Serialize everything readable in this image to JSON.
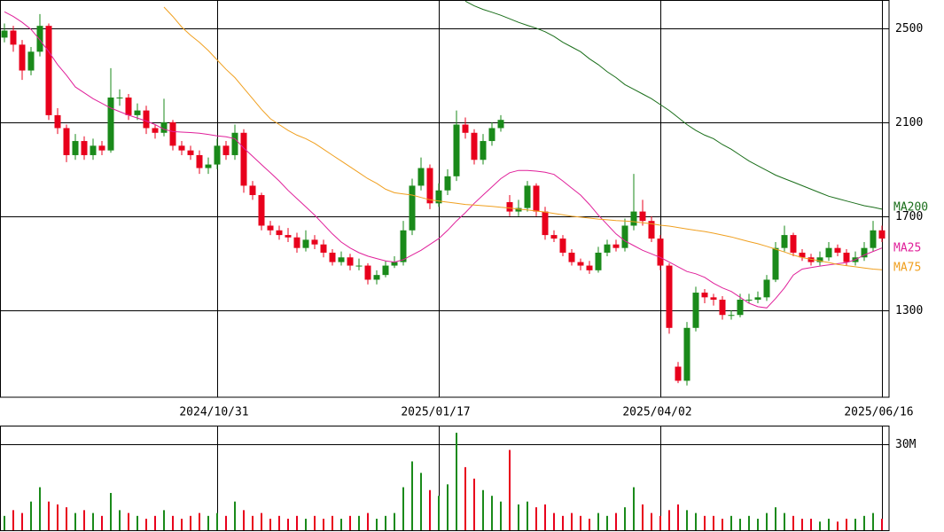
{
  "chart_data": {
    "type": "candlestick",
    "up_color": "#1a8a1a",
    "down_color": "#e8001c",
    "xlim": [
      -0.5,
      99.8
    ],
    "xticks": [
      {
        "value": 24,
        "label": "2024/10/31"
      },
      {
        "value": 49,
        "label": "2025/01/17"
      },
      {
        "value": 74,
        "label": "2025/04/02"
      },
      {
        "value": 99,
        "label": "2025/06/16"
      }
    ],
    "ylim": [
      930,
      2620
    ],
    "yticks": [
      1300,
      1700,
      2100,
      2500
    ],
    "grid": true,
    "candles": [
      [
        2460,
        2520,
        2440,
        2490
      ],
      [
        2490,
        2510,
        2400,
        2430
      ],
      [
        2430,
        2450,
        2280,
        2320
      ],
      [
        2320,
        2420,
        2300,
        2400
      ],
      [
        2400,
        2560,
        2380,
        2510
      ],
      [
        2510,
        2520,
        2110,
        2130
      ],
      [
        2130,
        2160,
        2050,
        2075
      ],
      [
        2075,
        2090,
        1930,
        1960
      ],
      [
        1960,
        2050,
        1940,
        2020
      ],
      [
        2020,
        2040,
        1940,
        1960
      ],
      [
        1960,
        2030,
        1940,
        2000
      ],
      [
        2000,
        2020,
        1960,
        1980
      ],
      [
        1980,
        2330,
        1970,
        2205
      ],
      [
        2205,
        2240,
        2170,
        2205
      ],
      [
        2205,
        2220,
        2110,
        2130
      ],
      [
        2130,
        2180,
        2110,
        2150
      ],
      [
        2150,
        2170,
        2050,
        2075
      ],
      [
        2075,
        2090,
        2030,
        2055
      ],
      [
        2055,
        2200,
        2040,
        2100
      ],
      [
        2100,
        2110,
        1980,
        2000
      ],
      [
        2000,
        2020,
        1960,
        1980
      ],
      [
        1980,
        2000,
        1940,
        1960
      ],
      [
        1960,
        1980,
        1880,
        1905
      ],
      [
        1905,
        1950,
        1880,
        1920
      ],
      [
        1920,
        2030,
        1900,
        2000
      ],
      [
        2000,
        2020,
        1940,
        1960
      ],
      [
        1960,
        2090,
        1940,
        2055
      ],
      [
        2055,
        2070,
        1800,
        1830
      ],
      [
        1830,
        1850,
        1770,
        1790
      ],
      [
        1790,
        1800,
        1640,
        1660
      ],
      [
        1660,
        1680,
        1620,
        1640
      ],
      [
        1640,
        1660,
        1600,
        1620
      ],
      [
        1620,
        1650,
        1590,
        1610
      ],
      [
        1610,
        1630,
        1545,
        1565
      ],
      [
        1565,
        1640,
        1550,
        1600
      ],
      [
        1600,
        1620,
        1560,
        1580
      ],
      [
        1580,
        1600,
        1525,
        1545
      ],
      [
        1545,
        1560,
        1490,
        1505
      ],
      [
        1505,
        1550,
        1490,
        1525
      ],
      [
        1525,
        1540,
        1470,
        1490
      ],
      [
        1490,
        1520,
        1470,
        1490
      ],
      [
        1490,
        1500,
        1410,
        1430
      ],
      [
        1430,
        1470,
        1410,
        1450
      ],
      [
        1450,
        1510,
        1440,
        1490
      ],
      [
        1490,
        1530,
        1480,
        1505
      ],
      [
        1505,
        1680,
        1490,
        1640
      ],
      [
        1640,
        1860,
        1620,
        1830
      ],
      [
        1830,
        1950,
        1810,
        1905
      ],
      [
        1905,
        1920,
        1730,
        1755
      ],
      [
        1755,
        1840,
        1740,
        1810
      ],
      [
        1810,
        1900,
        1790,
        1870
      ],
      [
        1870,
        2150,
        1850,
        2090
      ],
      [
        2090,
        2120,
        2030,
        2055
      ],
      [
        2055,
        2070,
        1920,
        1940
      ],
      [
        1940,
        2050,
        1920,
        2020
      ],
      [
        2020,
        2100,
        2000,
        2075
      ],
      [
        2075,
        2130,
        2060,
        2110
      ],
      [
        1760,
        1790,
        1700,
        1720
      ],
      [
        1720,
        1770,
        1700,
        1735
      ],
      [
        1735,
        1850,
        1720,
        1830
      ],
      [
        1830,
        1840,
        1700,
        1720
      ],
      [
        1720,
        1740,
        1600,
        1620
      ],
      [
        1620,
        1640,
        1590,
        1605
      ],
      [
        1605,
        1620,
        1530,
        1545
      ],
      [
        1545,
        1560,
        1490,
        1505
      ],
      [
        1505,
        1520,
        1470,
        1490
      ],
      [
        1490,
        1510,
        1455,
        1470
      ],
      [
        1470,
        1570,
        1460,
        1545
      ],
      [
        1545,
        1600,
        1530,
        1580
      ],
      [
        1580,
        1600,
        1550,
        1565
      ],
      [
        1565,
        1690,
        1550,
        1660
      ],
      [
        1660,
        1880,
        1640,
        1720
      ],
      [
        1720,
        1770,
        1660,
        1680
      ],
      [
        1680,
        1700,
        1590,
        1605
      ],
      [
        1605,
        1620,
        1470,
        1490
      ],
      [
        1490,
        1500,
        1200,
        1225
      ],
      [
        1060,
        1080,
        990,
        1000
      ],
      [
        1000,
        1250,
        980,
        1225
      ],
      [
        1225,
        1400,
        1210,
        1375
      ],
      [
        1375,
        1390,
        1330,
        1355
      ],
      [
        1355,
        1370,
        1320,
        1345
      ],
      [
        1345,
        1360,
        1260,
        1280
      ],
      [
        1280,
        1300,
        1260,
        1280
      ],
      [
        1280,
        1370,
        1270,
        1345
      ],
      [
        1345,
        1370,
        1330,
        1345
      ],
      [
        1345,
        1380,
        1330,
        1355
      ],
      [
        1355,
        1450,
        1340,
        1430
      ],
      [
        1430,
        1590,
        1420,
        1565
      ],
      [
        1565,
        1660,
        1550,
        1620
      ],
      [
        1620,
        1630,
        1530,
        1545
      ],
      [
        1545,
        1560,
        1510,
        1525
      ],
      [
        1525,
        1540,
        1490,
        1505
      ],
      [
        1505,
        1550,
        1490,
        1525
      ],
      [
        1525,
        1590,
        1510,
        1565
      ],
      [
        1565,
        1580,
        1530,
        1545
      ],
      [
        1545,
        1560,
        1490,
        1505
      ],
      [
        1505,
        1550,
        1490,
        1525
      ],
      [
        1525,
        1590,
        1510,
        1565
      ],
      [
        1565,
        1680,
        1550,
        1640
      ],
      [
        1640,
        1660,
        1590,
        1605
      ]
    ],
    "moving_averages": [
      {
        "name": "MA200",
        "color": "#1a6e1a",
        "values": [
          null,
          null,
          null,
          null,
          null,
          null,
          null,
          null,
          null,
          null,
          null,
          null,
          null,
          null,
          null,
          null,
          null,
          null,
          null,
          null,
          null,
          null,
          null,
          null,
          null,
          null,
          null,
          null,
          null,
          null,
          null,
          null,
          null,
          null,
          null,
          null,
          null,
          null,
          null,
          null,
          null,
          null,
          null,
          null,
          null,
          null,
          null,
          null,
          null,
          null,
          null,
          null,
          2615,
          2595,
          2580,
          2568,
          2555,
          2540,
          2525,
          2512,
          2500,
          2485,
          2465,
          2440,
          2420,
          2400,
          2370,
          2345,
          2315,
          2290,
          2260,
          2240,
          2220,
          2200,
          2175,
          2150,
          2120,
          2090,
          2065,
          2045,
          2030,
          2005,
          1985,
          1960,
          1935,
          1915,
          1895,
          1875,
          1860,
          1845,
          1830,
          1815,
          1800,
          1785,
          1775,
          1765,
          1755,
          1745,
          1738,
          1730
        ]
      },
      {
        "name": "MA25",
        "color": "#e0209a",
        "values": [
          2570,
          2550,
          2525,
          2495,
          2450,
          2400,
          2345,
          2300,
          2250,
          2225,
          2200,
          2180,
          2160,
          2145,
          2130,
          2118,
          2105,
          2090,
          2070,
          2060,
          2058,
          2056,
          2053,
          2048,
          2042,
          2038,
          2030,
          1990,
          1955,
          1920,
          1885,
          1850,
          1810,
          1775,
          1740,
          1705,
          1665,
          1625,
          1590,
          1565,
          1545,
          1530,
          1520,
          1510,
          1505,
          1515,
          1535,
          1555,
          1580,
          1605,
          1640,
          1680,
          1715,
          1755,
          1790,
          1825,
          1860,
          1885,
          1895,
          1895,
          1892,
          1887,
          1878,
          1850,
          1820,
          1790,
          1750,
          1705,
          1665,
          1625,
          1595,
          1575,
          1555,
          1540,
          1525,
          1505,
          1485,
          1465,
          1455,
          1440,
          1415,
          1395,
          1380,
          1355,
          1330,
          1315,
          1310,
          1350,
          1395,
          1450,
          1475,
          1482,
          1488,
          1493,
          1498,
          1503,
          1515,
          1535,
          1550,
          1565
        ]
      },
      {
        "name": "MA75",
        "color": "#f0a020",
        "values": [
          null,
          null,
          null,
          null,
          null,
          null,
          null,
          null,
          null,
          null,
          null,
          null,
          null,
          null,
          null,
          null,
          null,
          null,
          2590,
          2550,
          2505,
          2470,
          2440,
          2405,
          2365,
          2325,
          2290,
          2245,
          2200,
          2155,
          2115,
          2090,
          2065,
          2045,
          2030,
          2010,
          1985,
          1960,
          1935,
          1910,
          1885,
          1860,
          1840,
          1815,
          1800,
          1795,
          1790,
          1780,
          1770,
          1765,
          1760,
          1755,
          1750,
          1748,
          1745,
          1742,
          1738,
          1735,
          1730,
          1727,
          1722,
          1718,
          1712,
          1706,
          1700,
          1696,
          1692,
          1688,
          1685,
          1682,
          1680,
          1677,
          1672,
          1668,
          1662,
          1658,
          1652,
          1646,
          1640,
          1635,
          1628,
          1620,
          1612,
          1602,
          1592,
          1583,
          1572,
          1560,
          1548,
          1535,
          1524,
          1517,
          1510,
          1503,
          1495,
          1490,
          1485,
          1480,
          1475,
          1472
        ]
      }
    ],
    "volume": {
      "ylim": [
        0,
        36.5
      ],
      "yticks": [
        {
          "value": 30,
          "label": "30M"
        }
      ],
      "values": [
        5,
        7,
        6,
        10,
        15,
        10,
        9,
        8,
        6,
        7,
        6,
        5,
        13,
        7,
        6,
        5,
        4,
        5,
        7,
        5,
        4,
        5,
        6,
        5,
        6,
        5,
        10,
        7,
        5,
        6,
        4,
        5,
        4,
        5,
        4,
        5,
        4,
        5,
        4,
        5,
        5,
        6,
        4,
        5,
        6,
        15,
        24,
        20,
        14,
        12,
        16,
        34,
        22,
        18,
        14,
        12,
        10,
        28,
        9,
        10,
        8,
        9,
        6,
        5,
        6,
        5,
        4,
        6,
        5,
        6,
        8,
        15,
        9,
        6,
        5,
        7,
        9,
        7,
        6,
        5,
        5,
        4,
        5,
        4,
        5,
        4,
        6,
        8,
        6,
        5,
        4,
        4,
        3,
        4,
        3,
        4,
        4,
        5,
        6,
        4
      ]
    }
  }
}
